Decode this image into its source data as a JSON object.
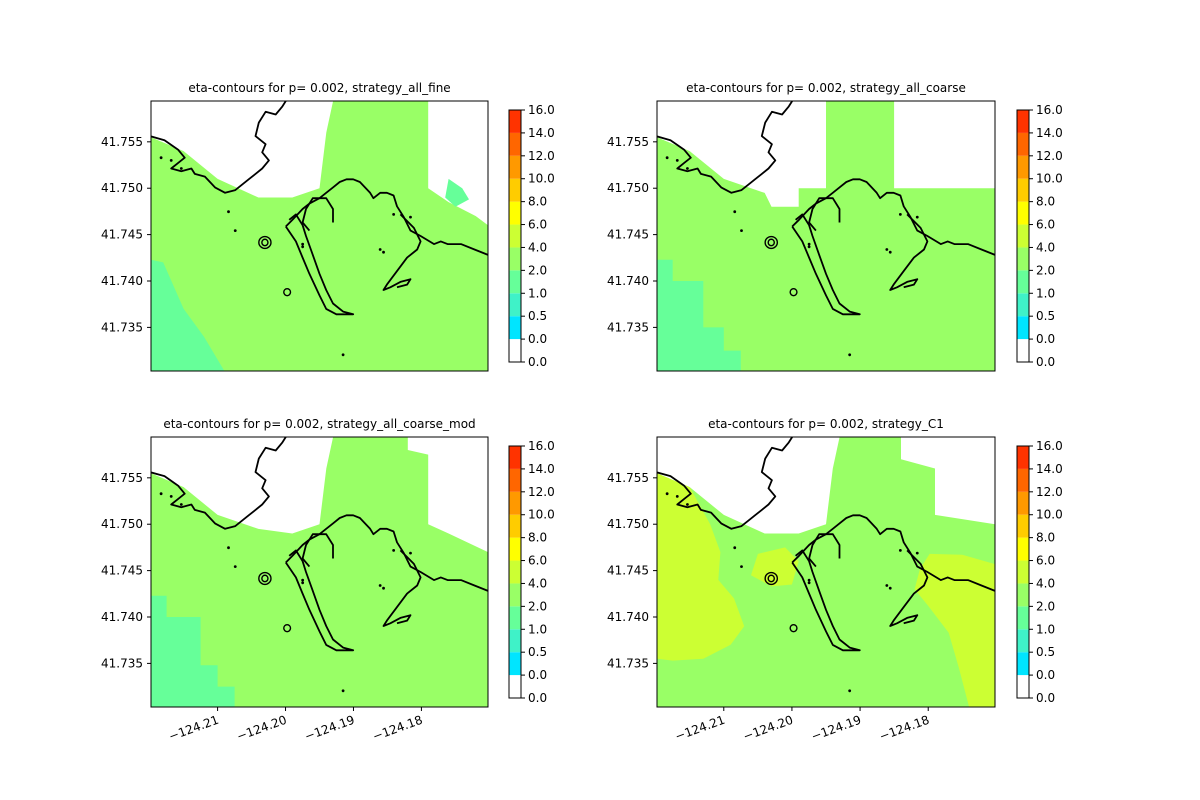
{
  "colormap": {
    "levels": [
      0.0,
      0.0,
      0.5,
      1.0,
      2.0,
      4.0,
      6.0,
      8.0,
      10.0,
      12.0,
      14.0,
      16.0
    ],
    "tick_labels": [
      "0.0",
      "0.0",
      "0.5",
      "1.0",
      "2.0",
      "4.0",
      "6.0",
      "8.0",
      "10.0",
      "12.0",
      "14.0",
      "16.0"
    ],
    "colors": [
      "#ffffff",
      "#00e5ff",
      "#3ff2c8",
      "#66ff99",
      "#99ff66",
      "#ccff33",
      "#ffff00",
      "#ffcc00",
      "#ff9900",
      "#ff6600",
      "#ff3300",
      "#ee0000"
    ]
  },
  "chart_data": [
    {
      "type": "heatmap",
      "title": "eta-contours for p= 0.002, strategy_all_fine",
      "yticks": [
        "41.755",
        "41.750",
        "41.745",
        "41.740",
        "41.735"
      ],
      "ytick_values": [
        41.755,
        41.75,
        41.745,
        41.74,
        41.735
      ],
      "xticks": [],
      "xlim": [
        -124.2198,
        -124.1702
      ],
      "ylim": [
        41.7303,
        41.7594
      ],
      "regions": [
        {
          "level": 2.0,
          "bin": "2.0–4.0",
          "poly": [
            [
              -124.2198,
              41.7555
            ],
            [
              -124.215,
              41.754
            ],
            [
              -124.21,
              41.751
            ],
            [
              -124.204,
              41.749
            ],
            [
              -124.199,
              41.749
            ],
            [
              -124.195,
              41.75
            ],
            [
              -124.194,
              41.756
            ],
            [
              -124.193,
              41.7594
            ],
            [
              -124.179,
              41.7594
            ],
            [
              -124.179,
              41.75
            ],
            [
              -124.176,
              41.7485
            ],
            [
              -124.172,
              41.747
            ],
            [
              -124.1702,
              41.746
            ],
            [
              -124.1702,
              41.7303
            ],
            [
              -124.2198,
              41.7303
            ]
          ]
        },
        {
          "level": 1.0,
          "bin": "1.0–2.0",
          "poly": [
            [
              -124.2198,
              41.7423
            ],
            [
              -124.218,
              41.742
            ],
            [
              -124.215,
              41.737
            ],
            [
              -124.212,
              41.734
            ],
            [
              -124.209,
              41.7303
            ],
            [
              -124.2198,
              41.7303
            ]
          ]
        },
        {
          "level": 1.0,
          "bin": "1.0–2.0",
          "poly": [
            [
              -124.176,
              41.751
            ],
            [
              -124.174,
              41.75
            ],
            [
              -124.173,
              41.7488
            ],
            [
              -124.175,
              41.748
            ],
            [
              -124.1765,
              41.749
            ]
          ]
        }
      ]
    },
    {
      "type": "heatmap",
      "title": "eta-contours for p= 0.002, strategy_all_coarse",
      "yticks": [
        "41.755",
        "41.750",
        "41.745",
        "41.740",
        "41.735"
      ],
      "ytick_values": [
        41.755,
        41.75,
        41.745,
        41.74,
        41.735
      ],
      "xticks": [],
      "xlim": [
        -124.2198,
        -124.1702
      ],
      "ylim": [
        41.7303,
        41.7594
      ],
      "regions": [
        {
          "level": 2.0,
          "bin": "2.0–4.0",
          "poly": [
            [
              -124.2198,
              41.7555
            ],
            [
              -124.215,
              41.754
            ],
            [
              -124.21,
              41.751
            ],
            [
              -124.204,
              41.7495
            ],
            [
              -124.203,
              41.748
            ],
            [
              -124.199,
              41.748
            ],
            [
              -124.199,
              41.75
            ],
            [
              -124.195,
              41.75
            ],
            [
              -124.195,
              41.7594
            ],
            [
              -124.185,
              41.7594
            ],
            [
              -124.185,
              41.75
            ],
            [
              -124.1702,
              41.75
            ],
            [
              -124.1702,
              41.7303
            ],
            [
              -124.2198,
              41.7303
            ]
          ]
        },
        {
          "level": 1.0,
          "bin": "1.0–2.0",
          "poly": [
            [
              -124.2198,
              41.7423
            ],
            [
              -124.2175,
              41.7423
            ],
            [
              -124.2175,
              41.74
            ],
            [
              -124.213,
              41.74
            ],
            [
              -124.213,
              41.735
            ],
            [
              -124.21,
              41.735
            ],
            [
              -124.21,
              41.7325
            ],
            [
              -124.2075,
              41.7325
            ],
            [
              -124.2075,
              41.7303
            ],
            [
              -124.2198,
              41.7303
            ]
          ]
        }
      ]
    },
    {
      "type": "heatmap",
      "title": "eta-contours for p= 0.002, strategy_all_coarse_mod",
      "yticks": [
        "41.755",
        "41.750",
        "41.745",
        "41.740",
        "41.735"
      ],
      "ytick_values": [
        41.755,
        41.75,
        41.745,
        41.74,
        41.735
      ],
      "xticks": [
        "−124.21",
        "−124.20",
        "−124.19",
        "−124.18"
      ],
      "xtick_values": [
        -124.21,
        -124.2,
        -124.19,
        -124.18
      ],
      "xlim": [
        -124.2198,
        -124.1702
      ],
      "ylim": [
        41.7303,
        41.7594
      ],
      "regions": [
        {
          "level": 2.0,
          "bin": "2.0–4.0",
          "poly": [
            [
              -124.2198,
              41.7555
            ],
            [
              -124.215,
              41.754
            ],
            [
              -124.21,
              41.751
            ],
            [
              -124.204,
              41.7495
            ],
            [
              -124.199,
              41.749
            ],
            [
              -124.195,
              41.75
            ],
            [
              -124.194,
              41.756
            ],
            [
              -124.193,
              41.7594
            ],
            [
              -124.182,
              41.7594
            ],
            [
              -124.182,
              41.758
            ],
            [
              -124.179,
              41.7575
            ],
            [
              -124.179,
              41.75
            ],
            [
              -124.176,
              41.749
            ],
            [
              -124.1702,
              41.747
            ],
            [
              -124.1702,
              41.7303
            ],
            [
              -124.2198,
              41.7303
            ]
          ]
        },
        {
          "level": 1.0,
          "bin": "1.0–2.0",
          "poly": [
            [
              -124.2198,
              41.7423
            ],
            [
              -124.2175,
              41.7423
            ],
            [
              -124.2175,
              41.74
            ],
            [
              -124.2125,
              41.74
            ],
            [
              -124.2125,
              41.7348
            ],
            [
              -124.21,
              41.7348
            ],
            [
              -124.21,
              41.7325
            ],
            [
              -124.2075,
              41.7325
            ],
            [
              -124.2075,
              41.7303
            ],
            [
              -124.2198,
              41.7303
            ]
          ]
        }
      ]
    },
    {
      "type": "heatmap",
      "title": "eta-contours for p= 0.002, strategy_C1",
      "yticks": [
        "41.755",
        "41.750",
        "41.745",
        "41.740",
        "41.735"
      ],
      "ytick_values": [
        41.755,
        41.75,
        41.745,
        41.74,
        41.735
      ],
      "xticks": [
        "−124.21",
        "−124.20",
        "−124.19",
        "−124.18"
      ],
      "xtick_values": [
        -124.21,
        -124.2,
        -124.19,
        -124.18
      ],
      "xlim": [
        -124.2198,
        -124.1702
      ],
      "ylim": [
        41.7303,
        41.7594
      ],
      "regions": [
        {
          "level": 2.0,
          "bin": "2.0–4.0",
          "poly": [
            [
              -124.2198,
              41.7555
            ],
            [
              -124.215,
              41.754
            ],
            [
              -124.21,
              41.751
            ],
            [
              -124.204,
              41.749
            ],
            [
              -124.199,
              41.749
            ],
            [
              -124.195,
              41.75
            ],
            [
              -124.194,
              41.756
            ],
            [
              -124.193,
              41.7594
            ],
            [
              -124.184,
              41.7594
            ],
            [
              -124.184,
              41.757
            ],
            [
              -124.179,
              41.756
            ],
            [
              -124.179,
              41.751
            ],
            [
              -124.1702,
              41.75
            ],
            [
              -124.1702,
              41.7303
            ],
            [
              -124.2198,
              41.7303
            ]
          ]
        },
        {
          "level": 4.0,
          "bin": "4.0–6.0",
          "poly": [
            [
              -124.2198,
              41.7555
            ],
            [
              -124.215,
              41.754
            ],
            [
              -124.212,
              41.75
            ],
            [
              -124.2105,
              41.747
            ],
            [
              -124.2108,
              41.744
            ],
            [
              -124.2085,
              41.742
            ],
            [
              -124.207,
              41.739
            ],
            [
              -124.209,
              41.737
            ],
            [
              -124.213,
              41.7355
            ],
            [
              -124.2175,
              41.7353
            ],
            [
              -124.2198,
              41.7355
            ]
          ]
        },
        {
          "level": 4.0,
          "bin": "4.0–6.0",
          "poly": [
            [
              -124.205,
              41.7468
            ],
            [
              -124.201,
              41.7475
            ],
            [
              -124.199,
              41.746
            ],
            [
              -124.2,
              41.7435
            ],
            [
              -124.203,
              41.7433
            ],
            [
              -124.206,
              41.7445
            ]
          ]
        },
        {
          "level": 4.0,
          "bin": "4.0–6.0",
          "poly": [
            [
              -124.1798,
              41.7468
            ],
            [
              -124.175,
              41.7467
            ],
            [
              -124.1702,
              41.7457
            ],
            [
              -124.1702,
              41.7303
            ],
            [
              -124.174,
              41.7303
            ],
            [
              -124.1755,
              41.7345
            ],
            [
              -124.177,
              41.7383
            ],
            [
              -124.18,
              41.7412
            ],
            [
              -124.182,
              41.743
            ],
            [
              -124.1812,
              41.7452
            ]
          ]
        }
      ]
    }
  ]
}
